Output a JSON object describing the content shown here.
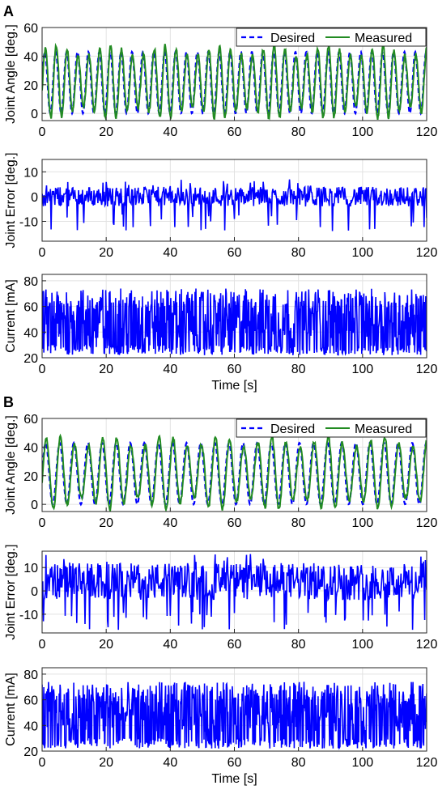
{
  "chart_data": [
    {
      "panel": "A",
      "type": "line",
      "ylabel": "Joint Angle [deg.]",
      "xlabel": "",
      "xlim": [
        0,
        120
      ],
      "ylim": [
        -5,
        60
      ],
      "xticks": [
        0,
        20,
        40,
        60,
        80,
        100,
        120
      ],
      "yticks": [
        0,
        20,
        40,
        60
      ],
      "grid": true,
      "legend": "top-right",
      "series": [
        {
          "name": "Desired",
          "color": "#0000ff",
          "style": "dashed",
          "x": [
            0,
            0.85,
            1.7,
            2.55,
            3.4,
            4.25,
            5.1,
            5.95,
            6.8,
            7.65,
            8.5,
            9.35,
            10.2,
            11.05,
            11.9,
            12.75,
            13.6
          ],
          "y": [
            22,
            43,
            22,
            0,
            22,
            43,
            22,
            0,
            22,
            43,
            22,
            0,
            22,
            43,
            22,
            0,
            22
          ],
          "period": 3.4,
          "min": 0,
          "max": 43
        },
        {
          "name": "Measured",
          "color": "#228b22",
          "style": "solid",
          "x": [
            0,
            0.85,
            1.7,
            2.55,
            3.4,
            4.25,
            5.1,
            5.95,
            6.8,
            7.65,
            8.5,
            9.35,
            10.2,
            11.05,
            11.9,
            12.75,
            13.6
          ],
          "y": [
            22,
            44,
            22,
            -2,
            22,
            45,
            22,
            -1,
            22,
            44,
            22,
            -2,
            22,
            45,
            22,
            -1,
            22
          ],
          "period": 3.4,
          "min": -3,
          "max": 48
        }
      ]
    },
    {
      "panel": "A",
      "type": "line",
      "ylabel": "Joint Error [deg.]",
      "xlabel": "",
      "xlim": [
        0,
        120
      ],
      "ylim": [
        -18,
        15
      ],
      "xticks": [
        0,
        20,
        40,
        60,
        80,
        100,
        120
      ],
      "yticks": [
        -10,
        0,
        10
      ],
      "grid": true,
      "series": [
        {
          "color": "#0000ff",
          "x": [
            0,
            5,
            10,
            13,
            15,
            20,
            22,
            25,
            30,
            35,
            40,
            45,
            50,
            52,
            55,
            60,
            65,
            70,
            75,
            78,
            80,
            85,
            90,
            95,
            100,
            105,
            110,
            115,
            120
          ],
          "y": [
            0,
            3,
            -5,
            2,
            -6,
            3,
            -10,
            2,
            -4,
            1,
            -9,
            2,
            -3,
            -14,
            3,
            -8,
            3,
            -5,
            4,
            6,
            -12,
            5,
            -10,
            4,
            -6,
            3,
            -5,
            4,
            -7
          ],
          "min": -14,
          "max": 7
        }
      ]
    },
    {
      "panel": "A",
      "type": "line",
      "ylabel": "Current [mA]",
      "xlabel": "Time [s]",
      "xlim": [
        0,
        120
      ],
      "ylim": [
        20,
        85
      ],
      "xticks": [
        0,
        20,
        40,
        60,
        80,
        100,
        120
      ],
      "yticks": [
        20,
        40,
        60,
        80
      ],
      "grid": true,
      "series": [
        {
          "color": "#0000ff",
          "x": [
            0,
            120
          ],
          "y": [
            22,
            74
          ],
          "min": 22,
          "max": 74
        }
      ]
    },
    {
      "panel": "B",
      "type": "line",
      "ylabel": "Joint Angle [deg.]",
      "xlabel": "",
      "xlim": [
        0,
        120
      ],
      "ylim": [
        -5,
        60
      ],
      "xticks": [
        0,
        20,
        40,
        60,
        80,
        100,
        120
      ],
      "yticks": [
        0,
        20,
        40,
        60
      ],
      "grid": true,
      "legend": "top-right",
      "series": [
        {
          "name": "Desired",
          "color": "#0000ff",
          "style": "dashed",
          "x": [
            0,
            1.1,
            2.2,
            3.3,
            4.4,
            5.5,
            6.6,
            7.7,
            8.8
          ],
          "y": [
            22,
            44,
            22,
            0,
            22,
            44,
            22,
            0,
            22
          ],
          "period": 4.4,
          "min": 0,
          "max": 44
        },
        {
          "name": "Measured",
          "color": "#228b22",
          "style": "solid",
          "x": [
            0,
            1.1,
            2.2,
            3.3,
            4.4,
            5.5,
            6.6,
            7.7,
            8.8
          ],
          "y": [
            20,
            40,
            20,
            -3,
            20,
            42,
            20,
            -2,
            20
          ],
          "period": 4.4,
          "min": -4,
          "max": 47
        }
      ]
    },
    {
      "panel": "B",
      "type": "line",
      "ylabel": "Joint Error [deg.]",
      "xlabel": "",
      "xlim": [
        0,
        120
      ],
      "ylim": [
        -18,
        17
      ],
      "xticks": [
        0,
        20,
        40,
        60,
        80,
        100,
        120
      ],
      "yticks": [
        -10,
        0,
        10
      ],
      "grid": true,
      "series": [
        {
          "color": "#0000ff",
          "x": [
            0,
            5,
            10,
            15,
            20,
            25,
            30,
            35,
            40,
            45,
            50,
            55,
            58,
            60,
            65,
            70,
            75,
            80,
            85,
            90,
            95,
            98,
            100,
            105,
            110,
            115,
            118,
            120
          ],
          "y": [
            10,
            2,
            12,
            -3,
            14,
            -10,
            13,
            -2,
            12,
            -5,
            13,
            -4,
            15,
            -10,
            12,
            -6,
            10,
            -10,
            8,
            -12,
            6,
            -16,
            5,
            -14,
            7,
            -12,
            -17,
            3
          ],
          "min": -17,
          "max": 16
        }
      ]
    },
    {
      "panel": "B",
      "type": "line",
      "ylabel": "Current [mA]",
      "xlabel": "Time [s]",
      "xlim": [
        0,
        120
      ],
      "ylim": [
        20,
        85
      ],
      "xticks": [
        0,
        20,
        40,
        60,
        80,
        100,
        120
      ],
      "yticks": [
        20,
        40,
        60,
        80
      ],
      "grid": true,
      "series": [
        {
          "color": "#0000ff",
          "x": [
            0,
            120
          ],
          "y": [
            22,
            74
          ],
          "min": 22,
          "max": 74
        }
      ]
    }
  ],
  "panels": {
    "a": "A",
    "b": "B"
  },
  "legend": {
    "desired": "Desired",
    "measured": "Measured"
  }
}
